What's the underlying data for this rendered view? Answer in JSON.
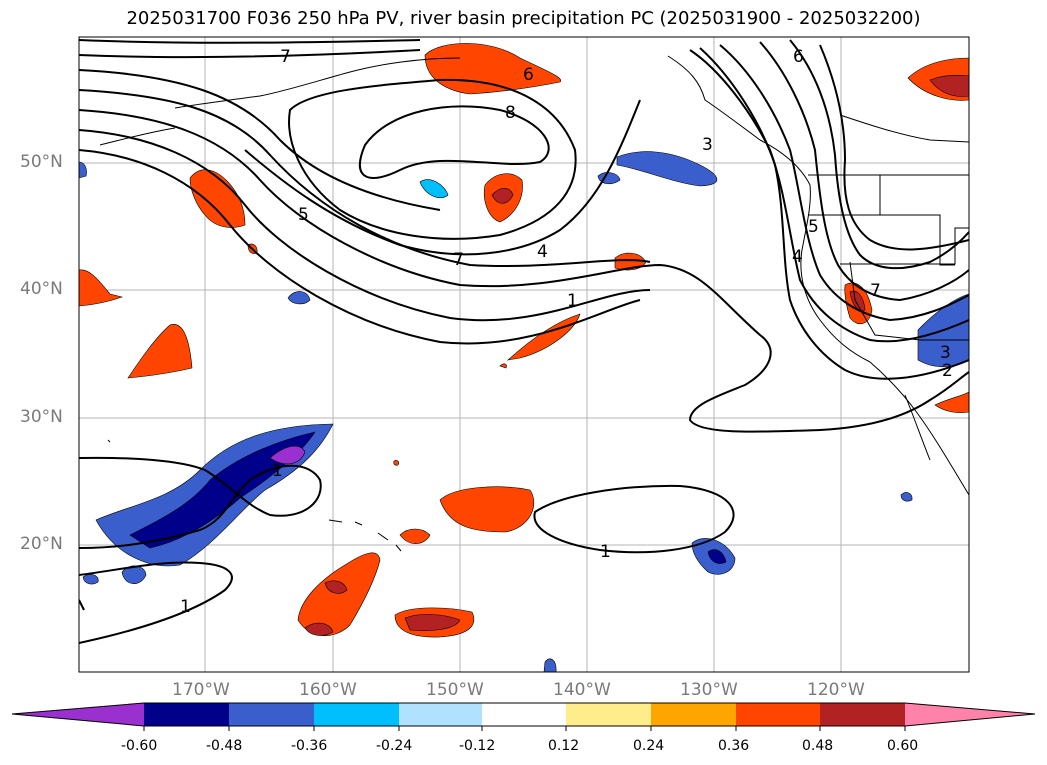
{
  "title": "2025031700 F036 250 hPa PV, river basin precipitation PC (2025031900 - 2025032200)",
  "map": {
    "lon_range": [
      -180,
      -110
    ],
    "lat_range": [
      10,
      60
    ],
    "lat_labels": [
      "50°N",
      "40°N",
      "30°N",
      "20°N"
    ],
    "lat_values": [
      50,
      40,
      30,
      20
    ],
    "lon_labels": [
      "170°W",
      "160°W",
      "150°W",
      "140°W",
      "130°W",
      "120°W"
    ],
    "lon_values": [
      -170,
      -160,
      -150,
      -140,
      -130,
      -120
    ],
    "pv_contour_labels": [
      "7",
      "6",
      "8",
      "5",
      "7",
      "4",
      "1",
      "3",
      "6",
      "5",
      "4",
      "7",
      "3",
      "2",
      "1",
      "1",
      "1"
    ]
  },
  "colorbar": {
    "ticks": [
      "-0.60",
      "-0.48",
      "-0.36",
      "-0.24",
      "-0.12",
      "0.12",
      "0.24",
      "0.36",
      "0.48",
      "0.60"
    ],
    "colors": [
      "#9b30d0",
      "#00008b",
      "#3a5fcd",
      "#00bfff",
      "#b0e2ff",
      "#ffffff",
      "#ffec8b",
      "#ffa500",
      "#ff4500",
      "#b22222",
      "#ff82ab"
    ],
    "extend": "both"
  }
}
